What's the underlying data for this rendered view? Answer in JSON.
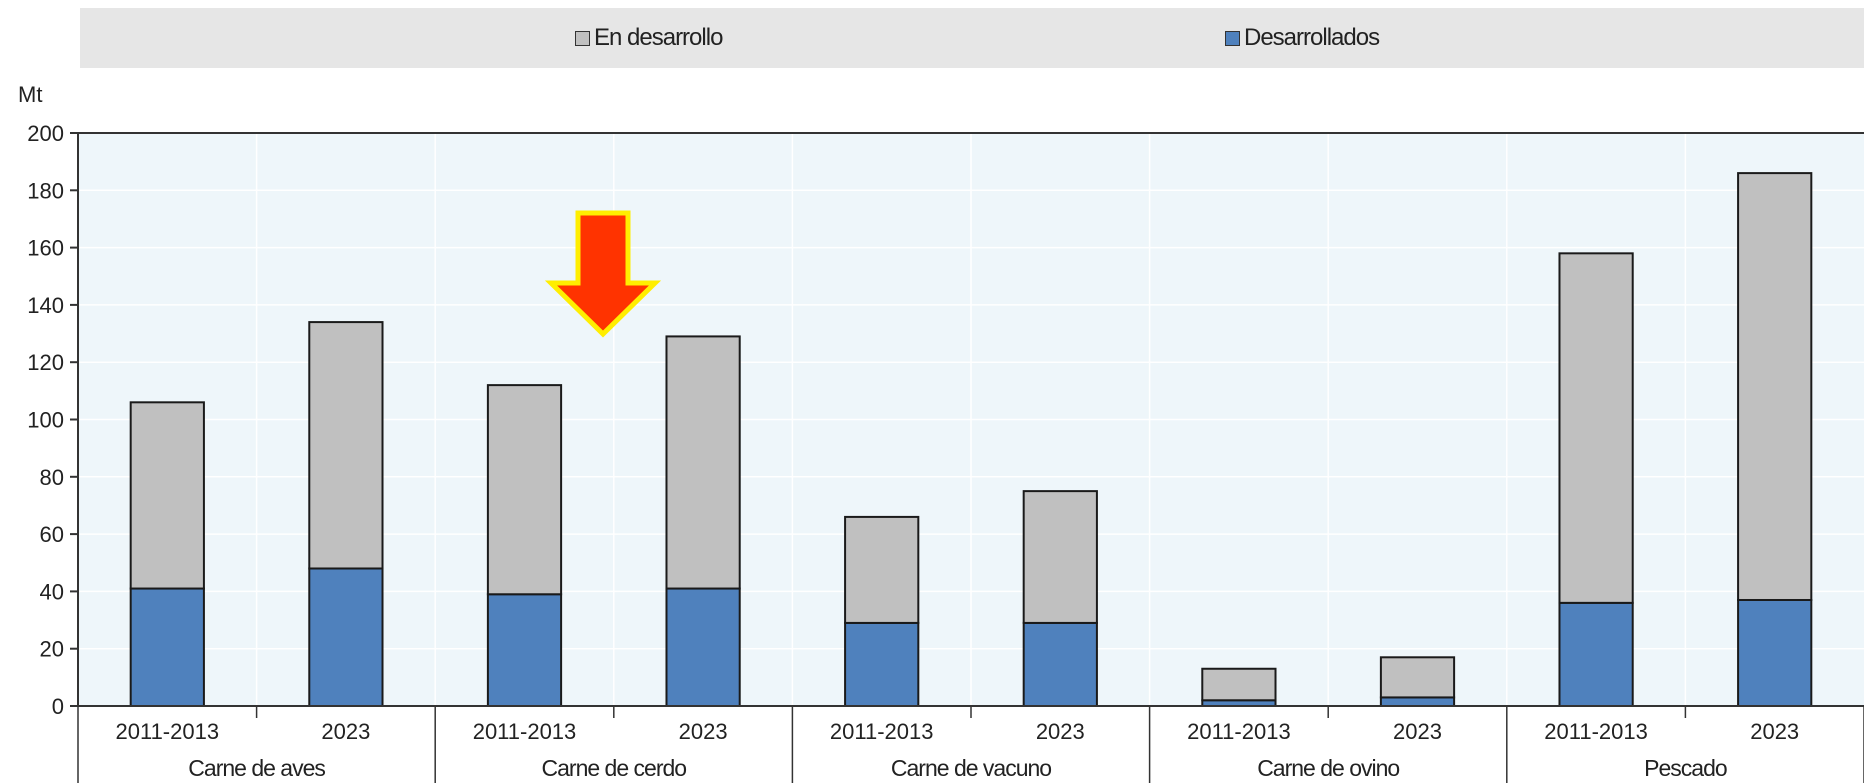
{
  "chart_data": {
    "type": "bar",
    "stacked": true,
    "ylabel": "Mt",
    "ylim": [
      0,
      200
    ],
    "yticks": [
      0,
      20,
      40,
      60,
      80,
      100,
      120,
      140,
      160,
      180,
      200
    ],
    "groups": [
      "Carne de aves",
      "Carne de cerdo",
      "Carne de vacuno",
      "Carne de ovino",
      "Pescado"
    ],
    "periods": [
      "2011-2013",
      "2023"
    ],
    "series": [
      {
        "name": "Desarrollados",
        "color": "#4f81bd",
        "values": [
          41,
          48,
          39,
          41,
          29,
          29,
          2,
          3,
          36,
          37
        ]
      },
      {
        "name": "En desarrollo",
        "color": "#c0c0c0",
        "values": [
          65,
          86,
          73,
          88,
          37,
          46,
          11,
          14,
          122,
          149
        ]
      }
    ],
    "legend": {
      "placement": "top",
      "order": [
        "En desarrollo",
        "Desarrollados"
      ]
    },
    "annotation": {
      "type": "arrow",
      "icon": "down-arrow-icon",
      "color": "#ff3300",
      "outline_color": "#ffee00",
      "points_to": "Carne de cerdo"
    },
    "plot_background": "#eef6fa",
    "grid": true
  }
}
